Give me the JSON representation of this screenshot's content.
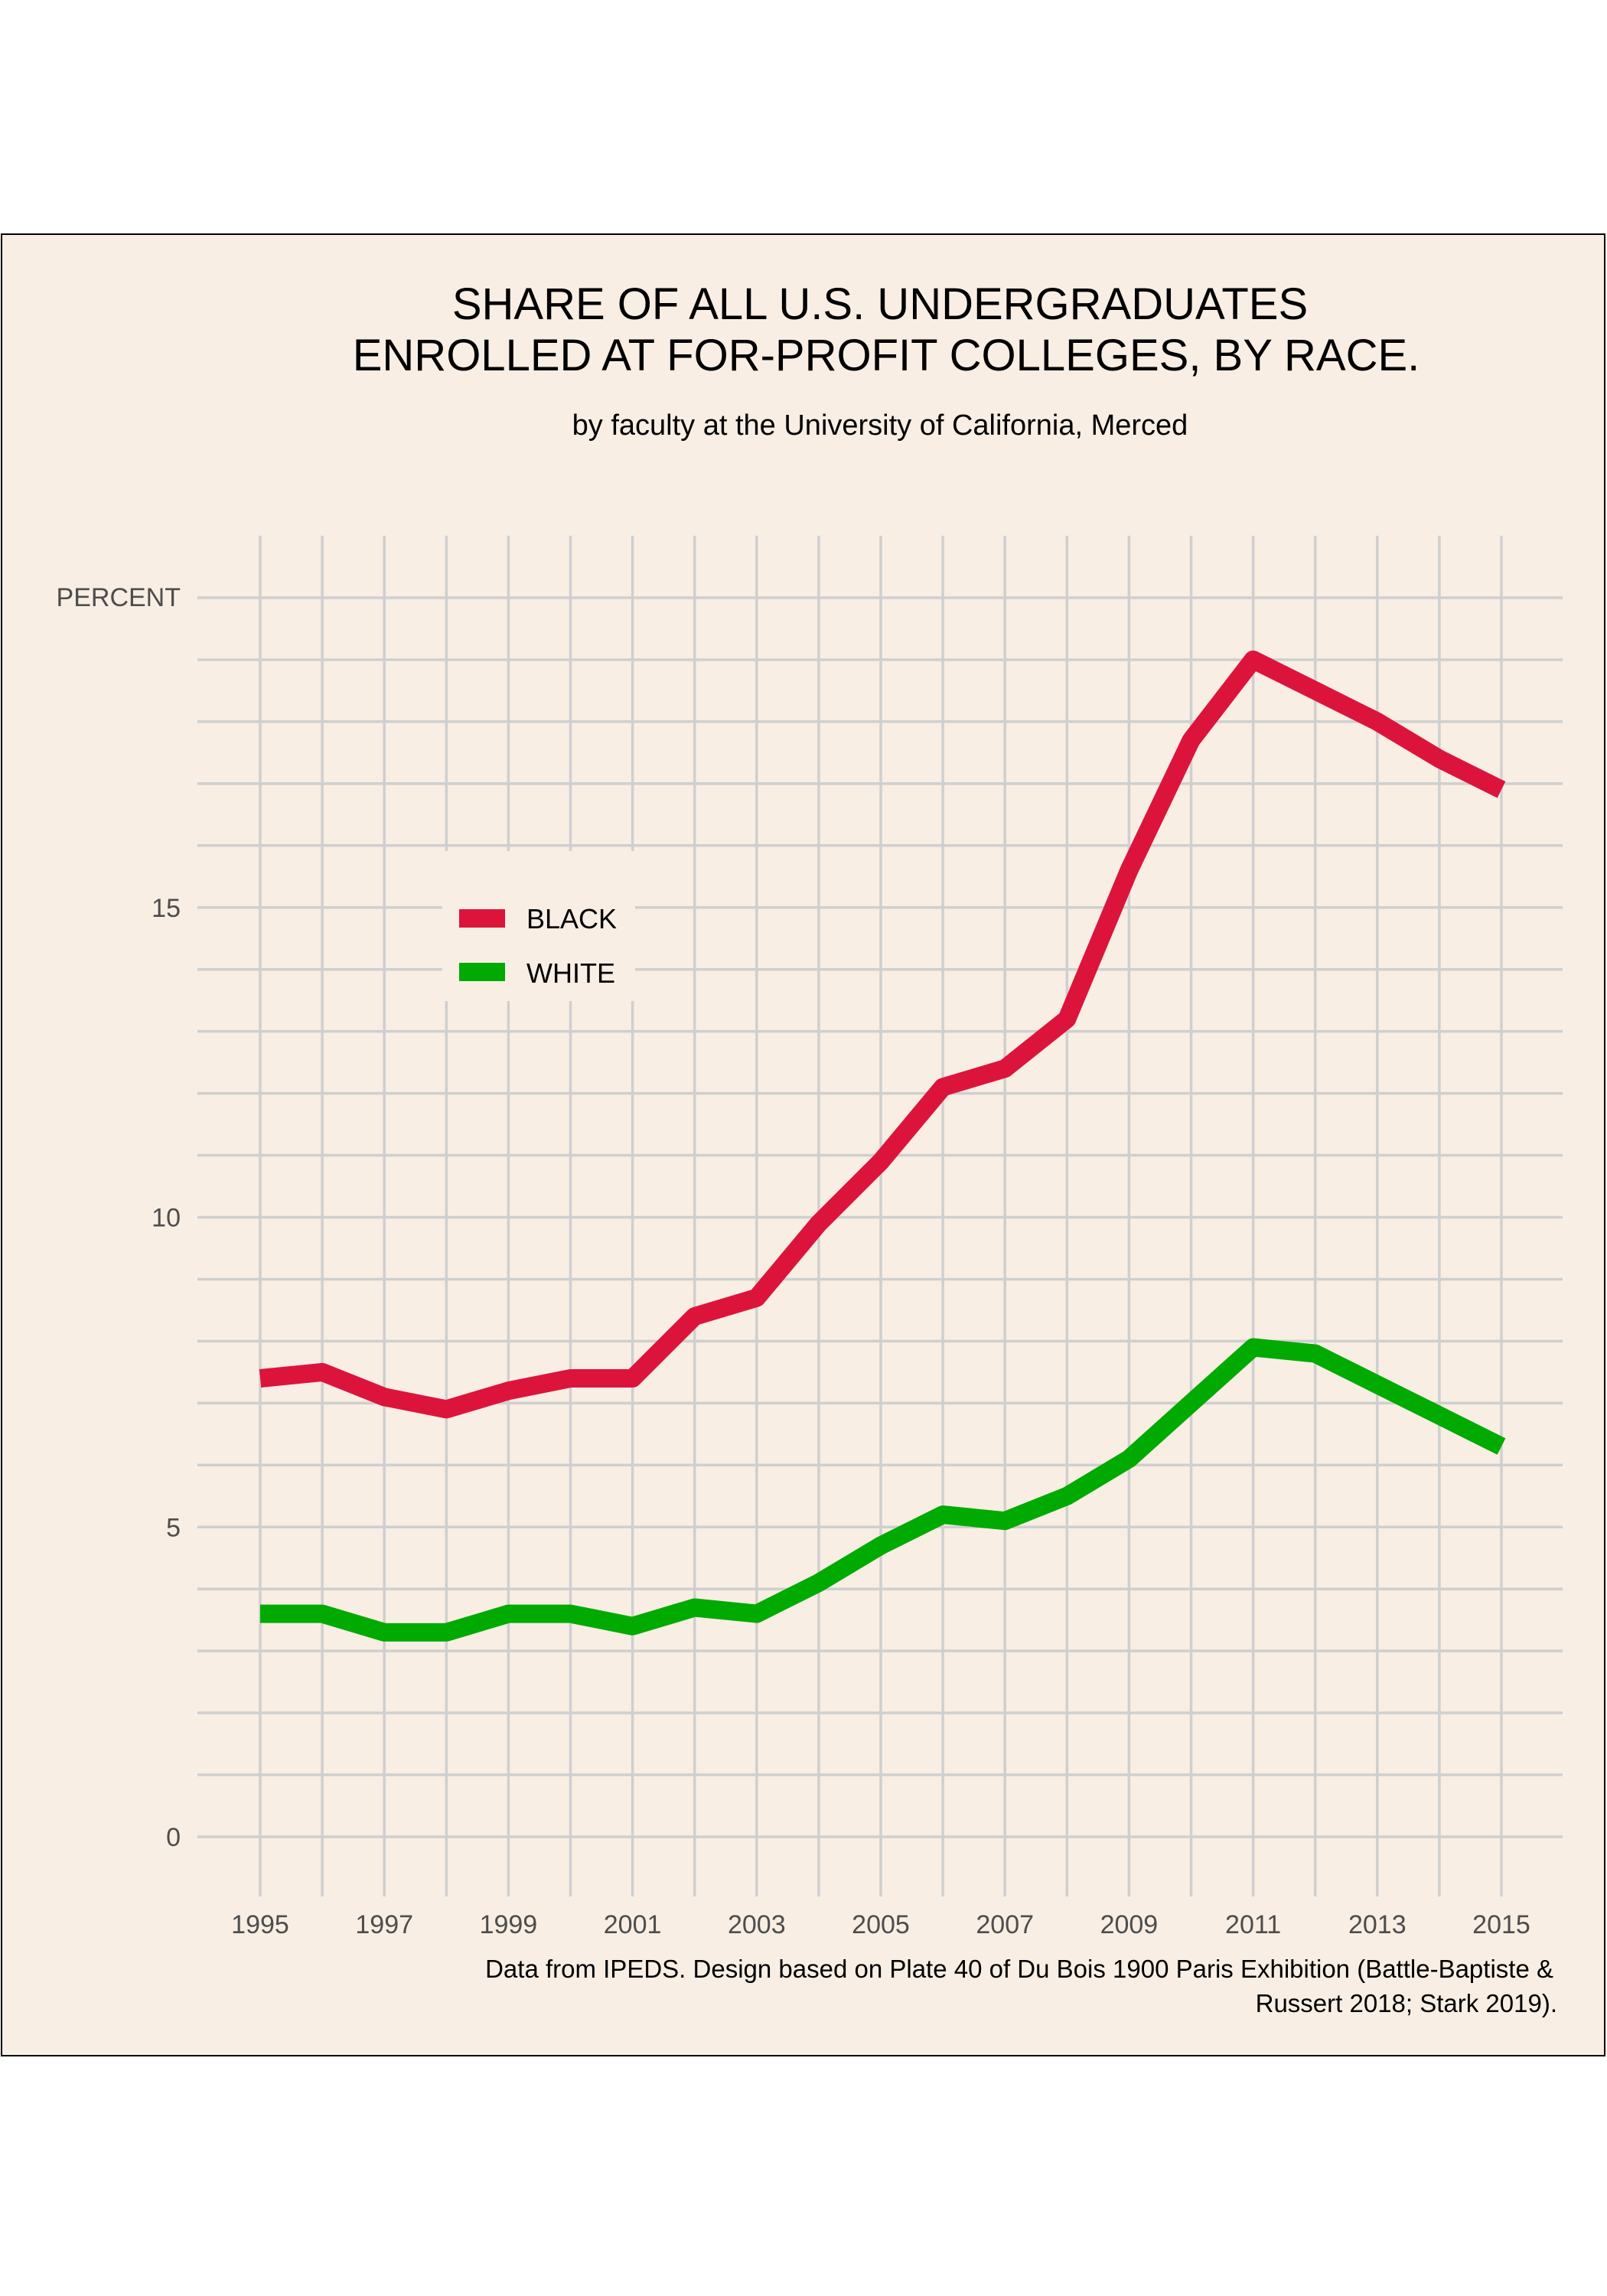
{
  "chart_data": {
    "type": "line",
    "title_lines": [
      "SHARE OF ALL U.S. UNDERGRADUATES",
      "ENROLLED AT FOR-PROFIT COLLEGES, BY RACE."
    ],
    "subtitle": "by faculty at the University of California, Merced",
    "ylabel": "PERCENT",
    "caption_lines": [
      "Data from IPEDS. Design based on Plate 40 of Du Bois 1900 Paris Exhibition (Battle-Baptiste &",
      "Russert 2018; Stark 2019)."
    ],
    "x": [
      1995,
      1996,
      1997,
      1998,
      1999,
      2000,
      2001,
      2002,
      2003,
      2004,
      2005,
      2006,
      2007,
      2008,
      2009,
      2010,
      2011,
      2012,
      2013,
      2014,
      2015
    ],
    "xlim": [
      1995,
      2015
    ],
    "x_ticks": [
      "1995",
      "1997",
      "1999",
      "2001",
      "2003",
      "2005",
      "2007",
      "2009",
      "2011",
      "2013",
      "2015"
    ],
    "ylim": [
      0,
      20
    ],
    "y_ticks": [
      "0",
      "5",
      "10",
      "15"
    ],
    "grid": true,
    "legend_position": "left-center",
    "background": "#f8eee4",
    "series": [
      {
        "name": "BLACK",
        "color": "#dc143c",
        "values": [
          7.4,
          7.5,
          7.1,
          6.9,
          7.2,
          7.4,
          7.4,
          8.4,
          8.7,
          9.9,
          10.9,
          12.1,
          12.4,
          13.2,
          15.6,
          17.7,
          19.0,
          18.5,
          18.0,
          17.4,
          16.9
        ]
      },
      {
        "name": "WHITE",
        "color": "#00aa00",
        "values": [
          3.6,
          3.6,
          3.3,
          3.3,
          3.6,
          3.6,
          3.4,
          3.7,
          3.6,
          4.1,
          4.7,
          5.2,
          5.1,
          5.5,
          6.1,
          7.0,
          7.9,
          7.8,
          7.3,
          6.8,
          6.3
        ]
      }
    ]
  }
}
